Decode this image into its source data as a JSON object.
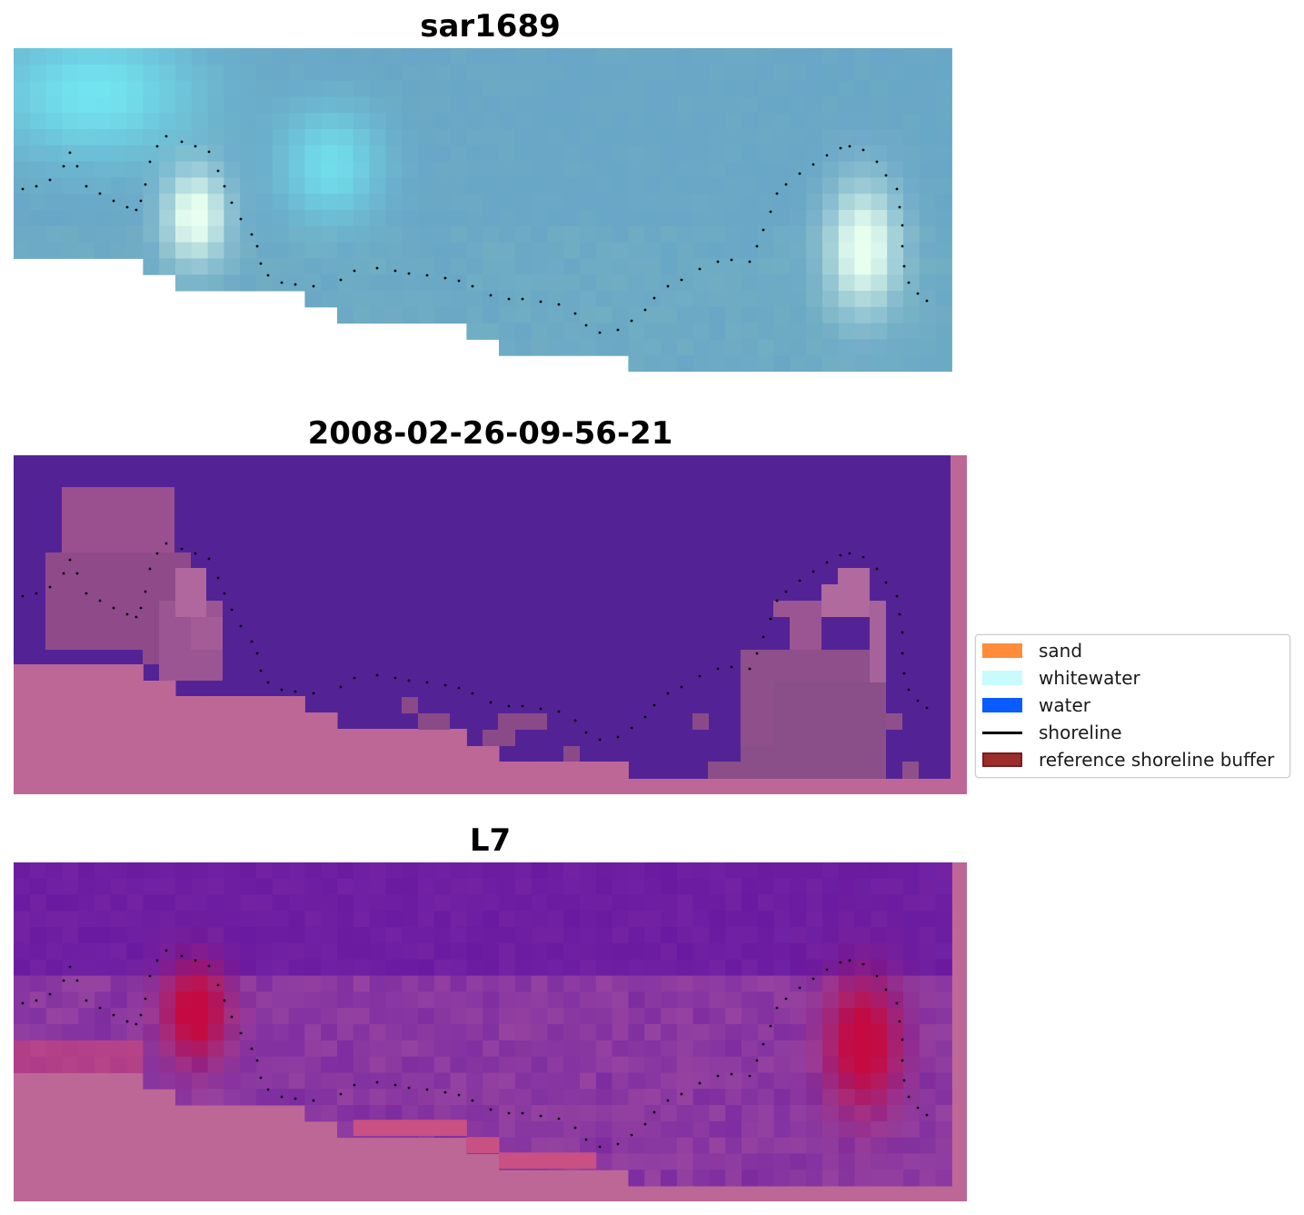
{
  "panels": [
    {
      "title": "sar1689",
      "kind": "rgb"
    },
    {
      "title": "2008-02-26-09-56-21",
      "kind": "classified"
    },
    {
      "title": "L7",
      "kind": "index"
    }
  ],
  "legend": {
    "items": [
      {
        "label": "sand",
        "color": "#ff8c3a",
        "type": "patch"
      },
      {
        "label": "whitewater",
        "color": "#c8fbfb",
        "type": "patch"
      },
      {
        "label": "water",
        "color": "#0a5cff",
        "type": "patch"
      },
      {
        "label": "shoreline",
        "color": "#000000",
        "type": "line"
      },
      {
        "label": "reference shoreline buffer",
        "color": "#9b2d2d",
        "type": "patch"
      }
    ]
  },
  "colors": {
    "water_class": "#532396",
    "buffer_mask": "#bd6797",
    "rgb_base": "#6ba9c4",
    "whitewater_bright": "#e8fff0",
    "index_low": "#6a1aa0",
    "index_high": "#c40a40"
  }
}
